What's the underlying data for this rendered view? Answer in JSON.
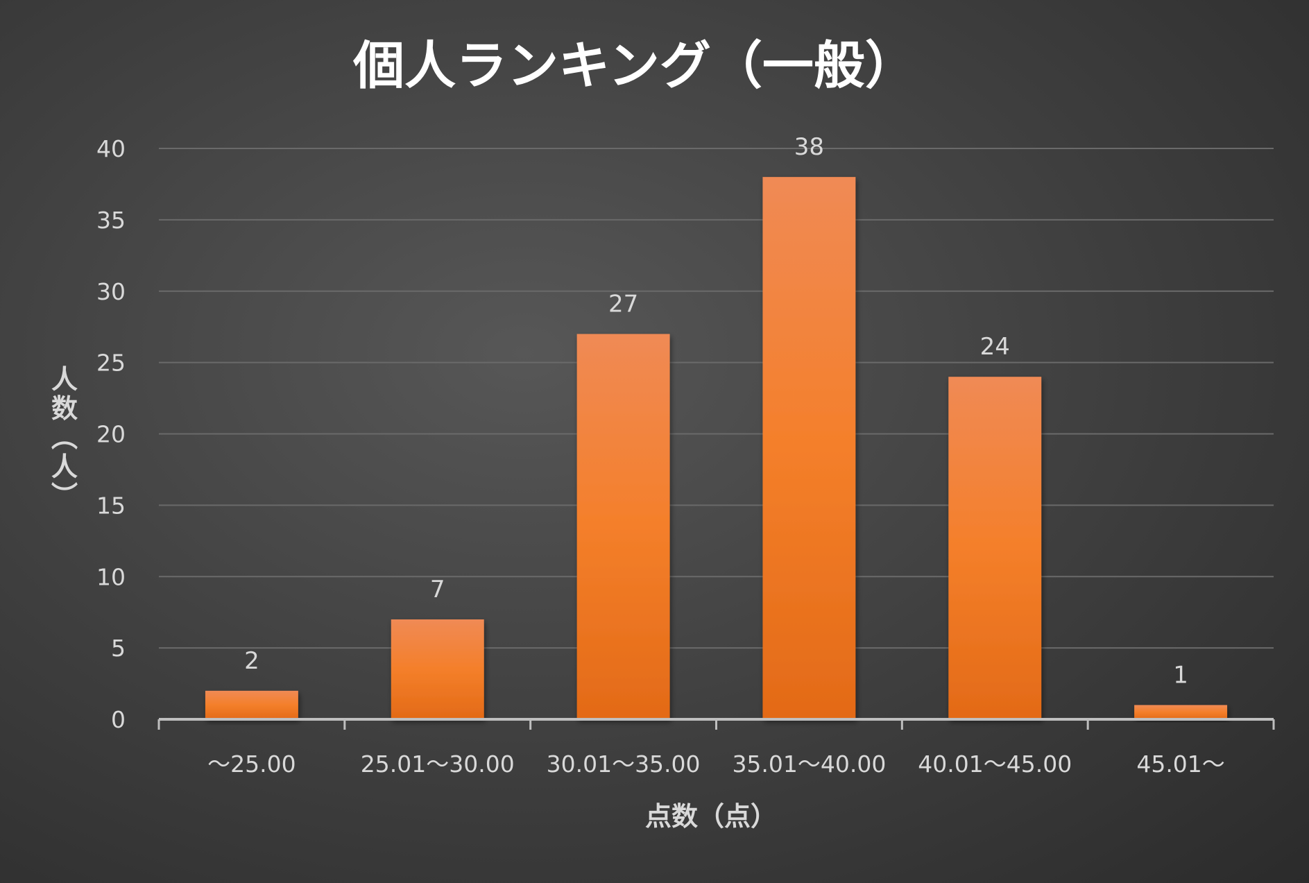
{
  "chart_data": {
    "type": "bar",
    "title": "個人ランキング（一般）",
    "xlabel": "点数（点）",
    "ylabel": "人数（人）",
    "categories": [
      "～25.00",
      "25.01～30.00",
      "30.01～35.00",
      "35.01～40.00",
      "40.01～45.00",
      "45.01～"
    ],
    "series": [
      {
        "name": "人数",
        "values": [
          2,
          7,
          27,
          38,
          24,
          1
        ]
      }
    ],
    "ylim": [
      0,
      40
    ],
    "yticks": [
      0,
      5,
      10,
      15,
      20,
      25,
      30,
      35,
      40
    ],
    "grid": true,
    "legend": "none",
    "data_labels": true,
    "colors": {
      "bar_top": "#f08a55",
      "bar_mid": "#f47f2a",
      "bar_bottom": "#e36a17"
    }
  }
}
